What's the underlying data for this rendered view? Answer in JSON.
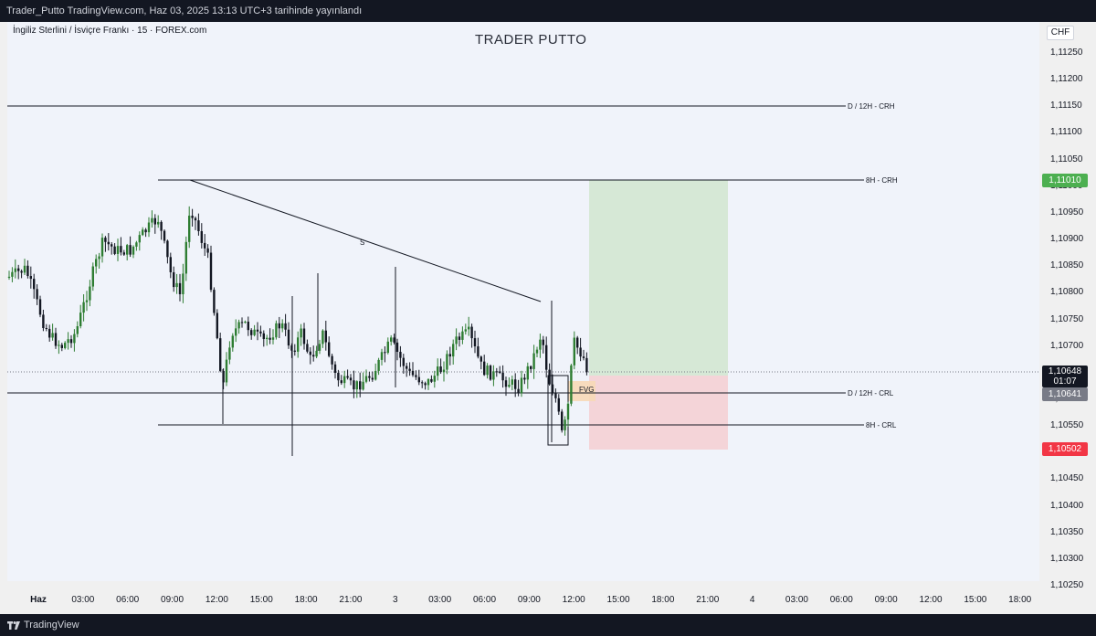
{
  "header": {
    "published": "Trader_Putto TradingView.com, Haz 03, 2025 13:13 UTC+3 tarihinde yayınlandı"
  },
  "symbol": "İngiliz Sterlini / İsviçre Frankı · 15 · FOREX.com",
  "watermark": "TRADER PUTTO",
  "currency": "CHF",
  "price_axis": [
    "1,11250",
    "1,11200",
    "1,11150",
    "1,11100",
    "1,11050",
    "1,11000",
    "1,10950",
    "1,10900",
    "1,10850",
    "1,10800",
    "1,10750",
    "1,10700",
    "1,10650",
    "1,10600",
    "1,10550",
    "1,10500",
    "1,10450",
    "1,10400",
    "1,10350",
    "1,10300",
    "1,10250"
  ],
  "price_tags": {
    "target": "1,11010",
    "current": "1,10648",
    "countdown": "01:07",
    "entry": "1,10641",
    "stop": "1,10502"
  },
  "time_axis": [
    {
      "label": "Haz",
      "bold": true
    },
    {
      "label": "03:00"
    },
    {
      "label": "06:00"
    },
    {
      "label": "09:00"
    },
    {
      "label": "12:00"
    },
    {
      "label": "15:00"
    },
    {
      "label": "18:00"
    },
    {
      "label": "21:00"
    },
    {
      "label": "3",
      "bold": false
    },
    {
      "label": "03:00"
    },
    {
      "label": "06:00"
    },
    {
      "label": "09:00"
    },
    {
      "label": "12:00"
    },
    {
      "label": "15:00"
    },
    {
      "label": "18:00"
    },
    {
      "label": "21:00"
    },
    {
      "label": "4"
    },
    {
      "label": "03:00"
    },
    {
      "label": "06:00"
    },
    {
      "label": "09:00"
    },
    {
      "label": "12:00"
    },
    {
      "label": "15:00"
    },
    {
      "label": "18:00"
    }
  ],
  "levels": {
    "d12h_crh": "D / 12H - CRH",
    "h8_crh": "8H - CRH",
    "d12h_crl": "D / 12H - CRL",
    "h8_crl": "8H - CRL"
  },
  "annotations": {
    "trendline_label": "S",
    "fvg": "FVG"
  },
  "colors": {
    "up": "#2e7d32",
    "down": "#131722",
    "profit_zone": "#d6e8d6",
    "loss_zone": "#f4d4d8"
  },
  "footer": {
    "brand": "TradingView"
  }
}
